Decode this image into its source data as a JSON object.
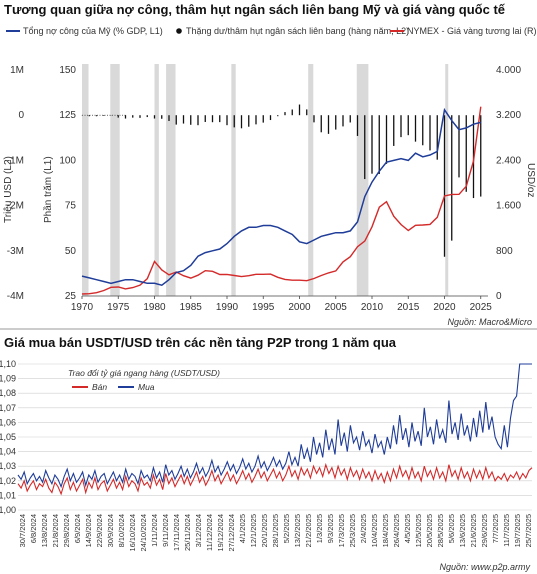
{
  "chart_data": [
    {
      "type": "line",
      "title": "Tương quan giữa nợ công, thâm hụt ngân sách liên bang Mỹ và giá vàng quốc tế",
      "legend": [
        {
          "label": "Tổng nợ công của Mỹ (% GDP, L1)",
          "color": "#1f3d99",
          "marker": "line"
        },
        {
          "label": "Thặng dư/thâm hụt ngân sách liên bang (hàng năm, L2)",
          "color": "#111111",
          "marker": "dot"
        },
        {
          "label": "NYMEX - Giá vàng tương lai (R)",
          "color": "#d42a2a",
          "marker": "line"
        }
      ],
      "ylabel_left_outer": "Triệu USD (L2)",
      "ylabel_left_inner": "Phần trăm (L1)",
      "ylabel_right": "USD/oz",
      "y_l2_ticks": [
        "1M",
        "0",
        "-1M",
        "-2M",
        "-3M",
        "-4M"
      ],
      "y_l1_ticks": [
        "150",
        "125",
        "100",
        "75",
        "50",
        "25"
      ],
      "y_r_ticks": [
        "4.000",
        "3.200",
        "2.400",
        "1.600",
        "800",
        "0"
      ],
      "x_ticks": [
        "1970",
        "1975",
        "1980",
        "1985",
        "1990",
        "1995",
        "2000",
        "2005",
        "2010",
        "2015",
        "2020",
        "2025"
      ],
      "xlim": [
        1970,
        2026
      ],
      "ylim_l1": [
        25,
        150
      ],
      "ylim_r": [
        0,
        4000
      ],
      "ylim_l2": [
        -4000000,
        1000000
      ],
      "recessions": [
        [
          1970.0,
          1970.9
        ],
        [
          1973.9,
          1975.2
        ],
        [
          1980.0,
          1980.6
        ],
        [
          1981.6,
          1982.9
        ],
        [
          1990.6,
          1991.2
        ],
        [
          2001.2,
          2001.9
        ],
        [
          2007.9,
          2009.5
        ],
        [
          2020.1,
          2020.4
        ]
      ],
      "debt_series": {
        "name": "Tổng nợ công của Mỹ (% GDP, L1)",
        "x": [
          1970,
          1971,
          1972,
          1973,
          1974,
          1975,
          1976,
          1977,
          1978,
          1979,
          1980,
          1981,
          1982,
          1983,
          1984,
          1985,
          1986,
          1987,
          1988,
          1989,
          1990,
          1991,
          1992,
          1993,
          1994,
          1995,
          1996,
          1997,
          1998,
          1999,
          2000,
          2001,
          2002,
          2003,
          2004,
          2005,
          2006,
          2007,
          2008,
          2009,
          2010,
          2011,
          2012,
          2013,
          2014,
          2015,
          2016,
          2017,
          2018,
          2019,
          2020,
          2021,
          2022,
          2023,
          2024,
          2025
        ],
        "y": [
          36,
          35,
          34,
          33,
          32,
          33,
          34,
          34,
          33,
          32,
          32,
          31,
          34,
          38,
          39,
          42,
          47,
          49,
          50,
          51,
          54,
          58,
          61,
          63,
          63,
          64,
          64,
          63,
          61,
          59,
          55,
          54,
          56,
          58,
          59,
          60,
          60,
          61,
          66,
          80,
          88,
          94,
          99,
          100,
          101,
          100,
          104,
          102,
          103,
          105,
          128,
          122,
          117,
          118,
          120,
          121
        ]
      },
      "gold_series": {
        "name": "NYMEX - Giá vàng tương lai (R)",
        "x": [
          1970,
          1971,
          1972,
          1973,
          1974,
          1975,
          1976,
          1977,
          1978,
          1979,
          1980,
          1981,
          1982,
          1983,
          1984,
          1985,
          1986,
          1987,
          1988,
          1989,
          1990,
          1991,
          1992,
          1993,
          1994,
          1995,
          1996,
          1997,
          1998,
          1999,
          2000,
          2001,
          2002,
          2003,
          2004,
          2005,
          2006,
          2007,
          2008,
          2009,
          2010,
          2011,
          2012,
          2013,
          2014,
          2015,
          2016,
          2017,
          2018,
          2019,
          2020,
          2021,
          2022,
          2023,
          2024,
          2025
        ],
        "y": [
          36,
          41,
          58,
          97,
          154,
          160,
          125,
          148,
          193,
          306,
          612,
          460,
          375,
          424,
          360,
          317,
          368,
          447,
          437,
          381,
          383,
          362,
          343,
          360,
          384,
          384,
          387,
          331,
          294,
          279,
          279,
          271,
          310,
          363,
          409,
          445,
          604,
          696,
          872,
          972,
          1225,
          1571,
          1669,
          1411,
          1266,
          1160,
          1251,
          1257,
          1268,
          1393,
          1770,
          1799,
          1800,
          1943,
          2389,
          3350
        ]
      },
      "deficit_series": {
        "name": "Thặng dư/thâm hụt ngân sách liên bang (hàng năm, L2)",
        "x": [
          1970,
          1971,
          1972,
          1973,
          1974,
          1975,
          1976,
          1977,
          1978,
          1979,
          1980,
          1981,
          1982,
          1983,
          1984,
          1985,
          1986,
          1987,
          1988,
          1989,
          1990,
          1991,
          1992,
          1993,
          1994,
          1995,
          1996,
          1997,
          1998,
          1999,
          2000,
          2001,
          2002,
          2003,
          2004,
          2005,
          2006,
          2007,
          2008,
          2009,
          2010,
          2011,
          2012,
          2013,
          2014,
          2015,
          2016,
          2017,
          2018,
          2019,
          2020,
          2021,
          2022,
          2023,
          2024,
          2025
        ],
        "y": [
          -3000,
          -23000,
          -23000,
          -15000,
          -6000,
          -53000,
          -74000,
          -54000,
          -59000,
          -41000,
          -74000,
          -79000,
          -128000,
          -208000,
          -185000,
          -212000,
          -221000,
          -150000,
          -155000,
          -153000,
          -221000,
          -269000,
          -290000,
          -255000,
          -203000,
          -164000,
          -107000,
          -22000,
          69000,
          126000,
          236000,
          128000,
          -158000,
          -378000,
          -413000,
          -318000,
          -248000,
          -161000,
          -459000,
          -1413000,
          -1294000,
          -1300000,
          -1077000,
          -680000,
          -485000,
          -442000,
          -585000,
          -665000,
          -779000,
          -984000,
          -3132000,
          -2775000,
          -1376000,
          -1695000,
          -1833000,
          -1800000
        ]
      },
      "source": "Nguồn: Macro&Micro"
    },
    {
      "type": "line",
      "title": "Giá mua bán USDT/USD trên các nền tảng P2P trong 1 năm qua",
      "legend_title": "Trao đổi tỷ giá ngang hàng (USDT/USD)",
      "legend": [
        {
          "label": "Bán",
          "color": "#d42a2a"
        },
        {
          "label": "Mua",
          "color": "#1f3d99"
        }
      ],
      "y_ticks": [
        "1,10",
        "1,09",
        "1,08",
        "1,07",
        "1,06",
        "1,05",
        "1,04",
        "1,03",
        "1,02",
        "1,01",
        "1,00"
      ],
      "ylim": [
        1.0,
        1.1
      ],
      "x_tick_labels": [
        "30/7/2024",
        "6/8/2024",
        "13/8/2024",
        "21/8/2024",
        "29/8/2024",
        "6/9/2024",
        "14/9/2024",
        "22/9/2024",
        "30/9/2024",
        "8/10/2024",
        "16/10/2024",
        "24/10/2024",
        "1/11/2024",
        "9/11/2024",
        "17/11/2024",
        "25/11/2024",
        "3/12/2024",
        "11/12/2024",
        "19/12/2024",
        "27/12/2024",
        "4/1/2025",
        "12/1/2025",
        "20/1/2025",
        "28/1/2025",
        "5/2/2025",
        "13/2/2025",
        "21/2/2025",
        "1/3/2025",
        "9/3/2025",
        "17/3/2025",
        "25/3/2025",
        "2/4/2025",
        "10/4/2025",
        "18/4/2025",
        "26/4/2025",
        "4/5/2025",
        "12/5/2025",
        "20/5/2025",
        "28/5/2025",
        "5/6/2025",
        "13/6/2025",
        "21/6/2025",
        "29/6/2025",
        "7/7/2025",
        "11/7/2025",
        "19/7/2025",
        "25/7/2025"
      ],
      "buy_series": {
        "name": "Mua",
        "values": [
          1.024,
          1.021,
          1.026,
          1.018,
          1.022,
          1.025,
          1.02,
          1.023,
          1.019,
          1.027,
          1.022,
          1.018,
          1.024,
          1.021,
          1.016,
          1.023,
          1.028,
          1.02,
          1.025,
          1.019,
          1.022,
          1.026,
          1.017,
          1.024,
          1.021,
          1.027,
          1.019,
          1.023,
          1.025,
          1.018,
          1.022,
          1.026,
          1.02,
          1.024,
          1.019,
          1.028,
          1.021,
          1.025,
          1.023,
          1.018,
          1.027,
          1.022,
          1.024,
          1.02,
          1.029,
          1.022,
          1.026,
          1.019,
          1.031,
          1.024,
          1.027,
          1.021,
          1.025,
          1.03,
          1.023,
          1.028,
          1.022,
          1.026,
          1.032,
          1.025,
          1.029,
          1.023,
          1.027,
          1.034,
          1.026,
          1.03,
          1.024,
          1.028,
          1.033,
          1.027,
          1.031,
          1.025,
          1.029,
          1.035,
          1.028,
          1.032,
          1.026,
          1.03,
          1.037,
          1.029,
          1.033,
          1.027,
          1.031,
          1.036,
          1.03,
          1.034,
          1.028,
          1.032,
          1.04,
          1.031,
          1.036,
          1.03,
          1.045,
          1.035,
          1.042,
          1.033,
          1.05,
          1.038,
          1.046,
          1.036,
          1.055,
          1.041,
          1.049,
          1.038,
          1.062,
          1.044,
          1.053,
          1.04,
          1.058,
          1.046,
          1.05,
          1.041,
          1.054,
          1.044,
          1.048,
          1.039,
          1.052,
          1.043,
          1.047,
          1.038,
          1.05,
          1.042,
          1.058,
          1.045,
          1.065,
          1.048,
          1.056,
          1.043,
          1.06,
          1.047,
          1.054,
          1.044,
          1.07,
          1.05,
          1.057,
          1.045,
          1.062,
          1.049,
          1.055,
          1.046,
          1.075,
          1.052,
          1.06,
          1.048,
          1.066,
          1.051,
          1.058,
          1.047,
          1.063,
          1.05,
          1.068,
          1.053,
          1.074,
          1.055,
          1.064,
          1.05,
          1.045,
          1.042,
          1.058,
          1.043,
          1.063,
          1.075,
          1.078,
          1.1,
          1.1,
          1.1,
          1.1,
          1.1
        ]
      },
      "sell_series": {
        "name": "Bán",
        "values": [
          1.018,
          1.015,
          1.02,
          1.013,
          1.017,
          1.02,
          1.014,
          1.018,
          1.016,
          1.021,
          1.015,
          1.012,
          1.019,
          1.016,
          1.011,
          1.018,
          1.022,
          1.014,
          1.019,
          1.013,
          1.017,
          1.021,
          1.012,
          1.019,
          1.015,
          1.022,
          1.014,
          1.018,
          1.02,
          1.013,
          1.017,
          1.021,
          1.015,
          1.019,
          1.014,
          1.023,
          1.016,
          1.02,
          1.018,
          1.013,
          1.022,
          1.017,
          1.019,
          1.015,
          1.024,
          1.017,
          1.021,
          1.014,
          1.025,
          1.018,
          1.022,
          1.016,
          1.02,
          1.024,
          1.018,
          1.023,
          1.017,
          1.021,
          1.026,
          1.019,
          1.023,
          1.017,
          1.021,
          1.027,
          1.02,
          1.024,
          1.018,
          1.022,
          1.026,
          1.02,
          1.024,
          1.018,
          1.022,
          1.027,
          1.021,
          1.025,
          1.019,
          1.023,
          1.028,
          1.022,
          1.026,
          1.02,
          1.024,
          1.028,
          1.022,
          1.026,
          1.02,
          1.024,
          1.03,
          1.023,
          1.027,
          1.021,
          1.029,
          1.024,
          1.028,
          1.022,
          1.03,
          1.025,
          1.029,
          1.023,
          1.031,
          1.025,
          1.029,
          1.022,
          1.03,
          1.024,
          1.028,
          1.021,
          1.029,
          1.023,
          1.027,
          1.021,
          1.028,
          1.022,
          1.026,
          1.02,
          1.027,
          1.021,
          1.025,
          1.019,
          1.026,
          1.02,
          1.028,
          1.022,
          1.03,
          1.023,
          1.027,
          1.021,
          1.029,
          1.022,
          1.026,
          1.02,
          1.03,
          1.023,
          1.027,
          1.021,
          1.029,
          1.022,
          1.026,
          1.02,
          1.031,
          1.023,
          1.027,
          1.021,
          1.029,
          1.022,
          1.026,
          1.02,
          1.028,
          1.022,
          1.027,
          1.021,
          1.029,
          1.022,
          1.026,
          1.02,
          1.023,
          1.021,
          1.025,
          1.02,
          1.024,
          1.022,
          1.026,
          1.021,
          1.025,
          1.022,
          1.027,
          1.029
        ]
      },
      "source": "Nguồn: www.p2p.army"
    }
  ]
}
